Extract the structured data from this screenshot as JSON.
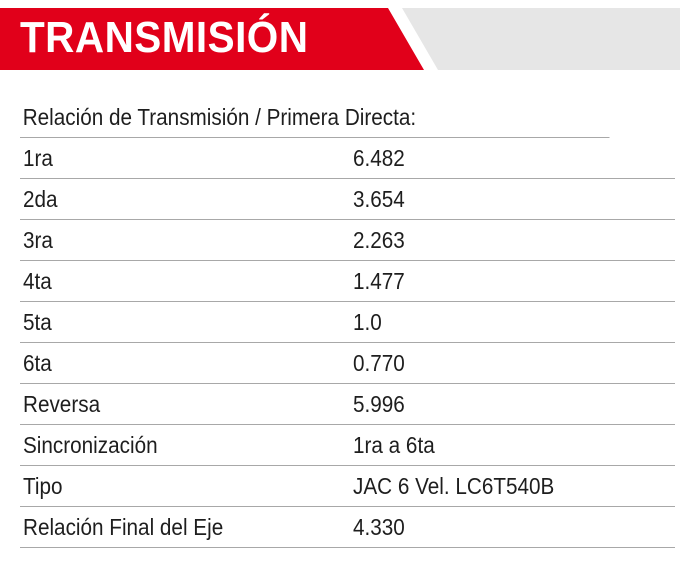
{
  "section": {
    "title": "TRANSMISIÓN",
    "accent_color": "#e1001a",
    "stripe_color": "#e6e6e6"
  },
  "table": {
    "header": "Relación de Transmisión / Primera Directa:",
    "rows": [
      {
        "label": "1ra",
        "value": "6.482"
      },
      {
        "label": "2da",
        "value": "3.654"
      },
      {
        "label": "3ra",
        "value": "2.263"
      },
      {
        "label": "4ta",
        "value": "1.477"
      },
      {
        "label": "5ta",
        "value": "1.0"
      },
      {
        "label": "6ta",
        "value": "0.770"
      },
      {
        "label": "Reversa",
        "value": "5.996"
      },
      {
        "label": "Sincronización",
        "value": "1ra a 6ta"
      },
      {
        "label": "Tipo",
        "value": "JAC 6 Vel. LC6T540B"
      },
      {
        "label": "Relación Final del Eje",
        "value": "4.330"
      }
    ]
  }
}
